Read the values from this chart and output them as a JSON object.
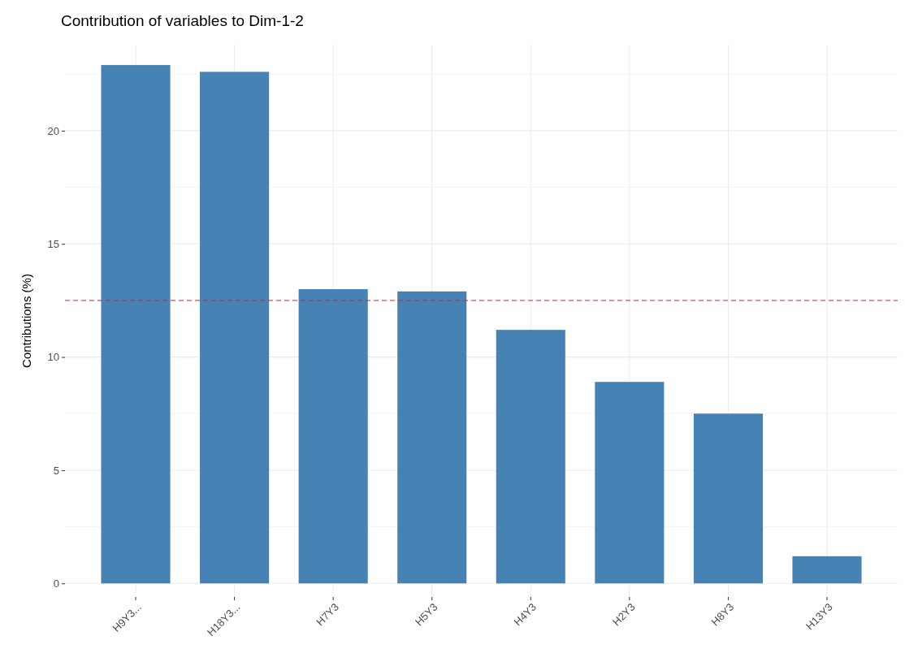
{
  "chart_data": {
    "type": "bar",
    "title": "Contribution of variables to Dim-1-2",
    "ylabel": "Contributions (%)",
    "categories": [
      "H9Y3...",
      "H18Y3...",
      "H7Y3",
      "H5Y3",
      "H4Y3",
      "H2Y3",
      "H8Y3",
      "H13Y3"
    ],
    "values": [
      22.9,
      22.6,
      13.0,
      12.9,
      11.2,
      8.9,
      7.5,
      1.2
    ],
    "color": "#4682b4",
    "ylim": [
      -0.6,
      23.8
    ],
    "yticks": [
      0,
      {
        "value": 2.5,
        "label": null
      },
      5,
      {
        "value": 7.5,
        "label": null
      },
      10,
      {
        "value": 12.5,
        "label": null
      },
      15,
      {
        "value": 17.5,
        "label": null
      },
      20,
      {
        "value": 22.5,
        "label": null
      }
    ],
    "grid": true,
    "ref_lines": [
      {
        "axis": "y",
        "value": 12.5,
        "color": "#d62728",
        "line_style": "dashed"
      }
    ]
  }
}
